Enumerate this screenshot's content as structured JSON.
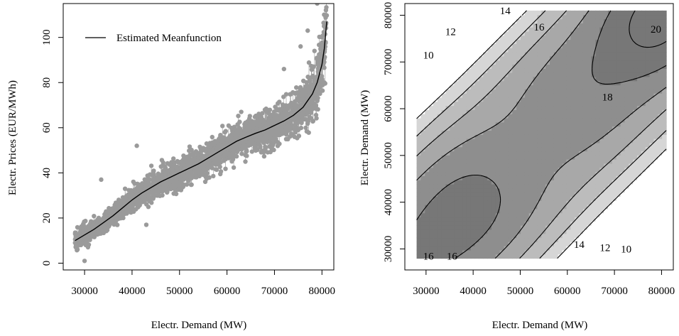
{
  "chart_data": [
    {
      "type": "scatter",
      "title": "",
      "xlabel": "Electr. Demand (MW)",
      "ylabel": "Electr. Prices (EUR/MWh)",
      "xlim": [
        25500,
        82500
      ],
      "ylim": [
        -3,
        115
      ],
      "x_ticks": [
        30000,
        40000,
        50000,
        60000,
        70000,
        80000
      ],
      "y_ticks": [
        0,
        20,
        40,
        60,
        80,
        100
      ],
      "legend": {
        "position": "top-left",
        "entries": [
          "Estimated Meanfunction"
        ]
      },
      "point_color": "#9a9a9a",
      "line_color": "#000000",
      "series": [
        {
          "name": "Estimated Meanfunction",
          "kind": "line",
          "x": [
            28000,
            30000,
            32000,
            34000,
            36000,
            38000,
            40000,
            42000,
            44000,
            46000,
            48000,
            50000,
            52000,
            54000,
            56000,
            58000,
            60000,
            62000,
            64000,
            66000,
            68000,
            70000,
            72000,
            74000,
            76000,
            77000,
            78000,
            79000,
            80000,
            80500,
            81000
          ],
          "y": [
            10,
            12.5,
            15,
            18,
            21,
            24.5,
            28,
            31,
            33.5,
            36,
            38,
            40,
            42,
            44,
            46.5,
            49,
            51.5,
            54,
            55.8,
            57.5,
            59,
            61,
            63,
            65.5,
            69,
            72,
            75,
            80,
            88,
            95,
            107
          ]
        },
        {
          "name": "",
          "kind": "points",
          "description_free": true,
          "x": [
            28000,
            29500,
            31000,
            32500,
            34000,
            35500,
            37000,
            38500,
            40000,
            41500,
            43000,
            44500,
            46000,
            47500,
            49000,
            50500,
            52000,
            53500,
            55000,
            56500,
            58000,
            59500,
            61000,
            62500,
            64000,
            65500,
            67000,
            68500,
            70000,
            71500,
            73000,
            74500,
            76000,
            77500,
            78500,
            79500,
            80500,
            30000,
            33500,
            41000,
            43000,
            63000,
            72000,
            75500,
            77000,
            79000,
            80000
          ],
          "y": [
            9,
            12,
            14,
            17,
            20,
            24,
            26,
            29,
            31,
            34,
            35,
            37,
            39,
            41,
            43,
            45,
            47,
            49,
            51,
            52,
            54,
            55,
            57,
            58,
            59,
            60,
            61,
            62,
            64,
            65,
            66,
            68,
            70,
            72,
            75,
            78,
            80,
            1,
            37,
            52,
            17,
            67,
            86,
            96,
            103,
            115,
            100
          ]
        }
      ]
    },
    {
      "type": "heatmap",
      "title": "",
      "xlabel": "Electr. Demand (MW)",
      "ylabel": "Electr. Demand (MW)",
      "xlim": [
        25500,
        82500
      ],
      "ylim": [
        25500,
        82500
      ],
      "x_ticks": [
        30000,
        40000,
        50000,
        60000,
        70000,
        80000
      ],
      "y_ticks": [
        30000,
        40000,
        50000,
        60000,
        70000,
        80000
      ],
      "contour_levels": [
        10,
        12,
        14,
        16,
        18,
        20
      ],
      "contour_labels": [
        {
          "text": "10",
          "x": 30500,
          "y": 71500
        },
        {
          "text": "12",
          "x": 35200,
          "y": 76500
        },
        {
          "text": "14",
          "x": 46800,
          "y": 81000
        },
        {
          "text": "16",
          "x": 54000,
          "y": 77500
        },
        {
          "text": "18",
          "x": 68500,
          "y": 62500
        },
        {
          "text": "20",
          "x": 78800,
          "y": 77000
        },
        {
          "text": "16",
          "x": 30500,
          "y": 28500
        },
        {
          "text": "16",
          "x": 35500,
          "y": 28500
        },
        {
          "text": "14",
          "x": 62500,
          "y": 31000
        },
        {
          "text": "12",
          "x": 68000,
          "y": 30300
        },
        {
          "text": "10",
          "x": 72500,
          "y": 30000
        }
      ],
      "fill_colors": [
        "#ffffff",
        "#d6d6d6",
        "#bcbcbc",
        "#a8a8a8",
        "#8e8e8e",
        "#777777"
      ]
    }
  ]
}
